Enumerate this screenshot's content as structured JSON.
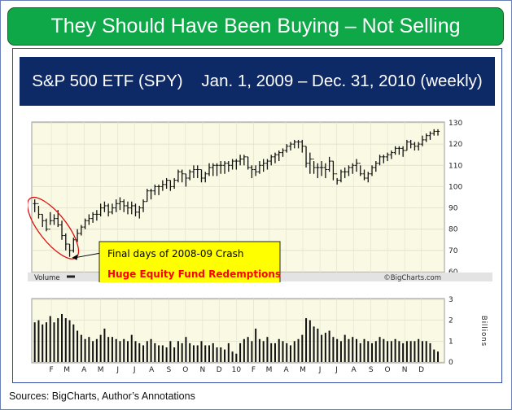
{
  "slide": {
    "title": "They Should Have Been Buying – Not Selling",
    "header_left": "S&P 500 ETF (SPY)",
    "header_right": "Jan. 1, 2009 – Dec. 31, 2010 (weekly)",
    "sources": "Sources: BigCharts, Author’s Annotations"
  },
  "annotation": {
    "line1": "Final days of 2008-09 Crash",
    "line2": "Huge Equity Fund Redemptions",
    "box_color": "#ffff00",
    "highlight_color": "#ff0000",
    "ellipse_color": "#dd1111"
  },
  "chart_data": [
    {
      "type": "ohlc",
      "title": "S&P 500 ETF (SPY)",
      "ylim": [
        60,
        130
      ],
      "yticks": [
        60,
        70,
        80,
        90,
        100,
        110,
        120,
        130
      ],
      "grid": true,
      "watermark": "©BigCharts.com",
      "x": [
        "2009-01-02",
        "2009-01-09",
        "2009-01-16",
        "2009-01-23",
        "2009-01-30",
        "2009-02-06",
        "2009-02-13",
        "2009-02-20",
        "2009-02-27",
        "2009-03-06",
        "2009-03-13",
        "2009-03-20",
        "2009-03-27",
        "2009-04-03",
        "2009-04-10",
        "2009-04-17",
        "2009-04-24",
        "2009-05-01",
        "2009-05-08",
        "2009-05-15",
        "2009-05-22",
        "2009-05-29",
        "2009-06-05",
        "2009-06-12",
        "2009-06-19",
        "2009-06-26",
        "2009-07-03",
        "2009-07-10",
        "2009-07-17",
        "2009-07-24",
        "2009-07-31",
        "2009-08-07",
        "2009-08-14",
        "2009-08-21",
        "2009-08-28",
        "2009-09-04",
        "2009-09-11",
        "2009-09-18",
        "2009-09-25",
        "2009-10-02",
        "2009-10-09",
        "2009-10-16",
        "2009-10-23",
        "2009-10-30",
        "2009-11-06",
        "2009-11-13",
        "2009-11-20",
        "2009-11-27",
        "2009-12-04",
        "2009-12-11",
        "2009-12-18",
        "2009-12-25",
        "2010-01-01",
        "2010-01-08",
        "2010-01-15",
        "2010-01-22",
        "2010-01-29",
        "2010-02-05",
        "2010-02-12",
        "2010-02-19",
        "2010-02-26",
        "2010-03-05",
        "2010-03-12",
        "2010-03-19",
        "2010-03-26",
        "2010-04-02",
        "2010-04-09",
        "2010-04-16",
        "2010-04-23",
        "2010-04-30",
        "2010-05-07",
        "2010-05-14",
        "2010-05-21",
        "2010-05-28",
        "2010-06-04",
        "2010-06-11",
        "2010-06-18",
        "2010-06-25",
        "2010-07-02",
        "2010-07-09",
        "2010-07-16",
        "2010-07-23",
        "2010-07-30",
        "2010-08-06",
        "2010-08-13",
        "2010-08-20",
        "2010-08-27",
        "2010-09-03",
        "2010-09-10",
        "2010-09-17",
        "2010-09-24",
        "2010-10-01",
        "2010-10-08",
        "2010-10-15",
        "2010-10-22",
        "2010-10-29",
        "2010-11-05",
        "2010-11-12",
        "2010-11-19",
        "2010-11-26",
        "2010-12-03",
        "2010-12-10",
        "2010-12-17",
        "2010-12-24",
        "2010-12-31"
      ],
      "high": [
        94,
        91,
        87,
        85,
        88,
        87,
        89,
        84,
        78,
        73,
        76,
        80,
        82,
        85,
        87,
        88,
        89,
        92,
        93,
        92,
        92,
        94,
        95,
        94,
        93,
        93,
        92,
        91,
        94,
        99,
        99,
        101,
        101,
        103,
        104,
        103,
        104,
        108,
        108,
        106,
        108,
        110,
        110,
        108,
        107,
        111,
        111,
        111,
        112,
        112,
        112,
        113,
        113,
        115,
        115,
        114,
        110,
        110,
        112,
        113,
        113,
        115,
        116,
        117,
        118,
        120,
        121,
        122,
        122,
        122,
        119,
        116,
        112,
        111,
        112,
        111,
        114,
        112,
        104,
        108,
        109,
        110,
        111,
        113,
        110,
        108,
        107,
        110,
        112,
        115,
        115,
        116,
        117,
        119,
        119,
        119,
        122,
        122,
        121,
        121,
        124,
        125,
        126,
        127,
        127
      ],
      "low": [
        88,
        85,
        81,
        79,
        82,
        82,
        81,
        75,
        70,
        67,
        69,
        74,
        77,
        80,
        82,
        83,
        84,
        86,
        88,
        86,
        87,
        88,
        89,
        88,
        87,
        87,
        86,
        85,
        88,
        93,
        94,
        96,
        96,
        98,
        99,
        98,
        99,
        102,
        102,
        100,
        103,
        104,
        104,
        102,
        102,
        105,
        105,
        105,
        106,
        106,
        107,
        108,
        108,
        110,
        110,
        108,
        104,
        105,
        106,
        107,
        108,
        110,
        111,
        112,
        114,
        116,
        117,
        118,
        118,
        116,
        109,
        106,
        106,
        104,
        105,
        104,
        107,
        103,
        101,
        102,
        104,
        105,
        106,
        107,
        105,
        103,
        102,
        105,
        107,
        110,
        111,
        112,
        113,
        115,
        115,
        114,
        117,
        118,
        117,
        117,
        119,
        121,
        122,
        124,
        124
      ],
      "close": [
        92,
        87,
        84,
        80,
        84,
        85,
        82,
        77,
        73,
        70,
        75,
        78,
        81,
        84,
        85,
        87,
        87,
        90,
        91,
        88,
        90,
        92,
        93,
        91,
        90,
        91,
        88,
        90,
        93,
        98,
        98,
        100,
        100,
        101,
        103,
        100,
        103,
        107,
        106,
        104,
        107,
        108,
        108,
        104,
        106,
        109,
        110,
        110,
        110,
        111,
        110,
        112,
        112,
        113,
        114,
        109,
        108,
        107,
        110,
        111,
        112,
        114,
        115,
        116,
        117,
        119,
        120,
        121,
        121,
        119,
        111,
        113,
        109,
        109,
        109,
        108,
        112,
        106,
        103,
        107,
        107,
        109,
        110,
        111,
        106,
        104,
        106,
        109,
        111,
        114,
        114,
        115,
        116,
        118,
        118,
        117,
        121,
        120,
        119,
        120,
        122,
        124,
        125,
        126,
        126
      ],
      "volume_billions": [
        1.9,
        2.0,
        1.8,
        1.9,
        2.2,
        1.9,
        2.1,
        2.3,
        2.1,
        2.0,
        1.8,
        1.5,
        1.3,
        1.1,
        1.2,
        1.0,
        1.1,
        1.3,
        1.6,
        1.2,
        1.2,
        1.1,
        1.0,
        1.1,
        1.0,
        1.3,
        1.0,
        0.9,
        0.8,
        1.0,
        1.1,
        0.9,
        0.8,
        0.8,
        0.7,
        1.0,
        0.7,
        1.0,
        0.9,
        1.2,
        0.9,
        0.8,
        0.8,
        1.0,
        0.8,
        0.8,
        0.9,
        0.7,
        0.7,
        0.6,
        0.9,
        0.5,
        0.4,
        0.9,
        1.1,
        1.2,
        1.0,
        1.6,
        1.1,
        1.0,
        1.2,
        0.9,
        0.9,
        1.1,
        1.0,
        0.9,
        0.8,
        1.0,
        1.1,
        1.3,
        2.1,
        2.0,
        1.7,
        1.6,
        1.3,
        1.4,
        1.5,
        1.2,
        1.1,
        1.0,
        1.3,
        1.1,
        1.2,
        1.1,
        0.9,
        1.1,
        1.0,
        0.9,
        1.0,
        1.2,
        1.1,
        1.0,
        1.0,
        1.1,
        1.0,
        0.9,
        1.0,
        1.0,
        1.0,
        1.1,
        1.0,
        1.0,
        0.9,
        0.6,
        0.5
      ]
    },
    {
      "type": "bar",
      "title": "Volume",
      "ylabel": "Billions",
      "ylim": [
        0,
        3
      ],
      "yticks": [
        0,
        1,
        2,
        3
      ],
      "xtick_labels": [
        "F",
        "M",
        "A",
        "M",
        "J",
        "J",
        "A",
        "S",
        "O",
        "N",
        "D",
        "10",
        "F",
        "M",
        "A",
        "M",
        "J",
        "J",
        "A",
        "S",
        "O",
        "N",
        "D"
      ],
      "xtick_dates": [
        "2009-02-01",
        "2009-03-01",
        "2009-04-01",
        "2009-05-01",
        "2009-06-01",
        "2009-07-01",
        "2009-08-01",
        "2009-09-01",
        "2009-10-01",
        "2009-11-01",
        "2009-12-01",
        "2010-01-01",
        "2010-02-01",
        "2010-03-01",
        "2010-04-01",
        "2010-05-01",
        "2010-06-01",
        "2010-07-01",
        "2010-08-01",
        "2010-09-01",
        "2010-10-01",
        "2010-11-01",
        "2010-12-01"
      ]
    }
  ]
}
